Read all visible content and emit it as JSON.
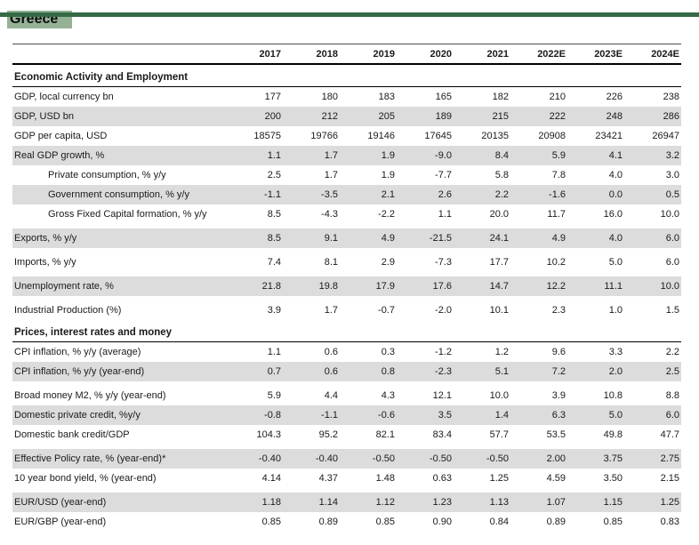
{
  "page": {
    "title": "Greece",
    "accent_bar_color": "#356a46",
    "title_highlight_color": "#95b295",
    "row_shade_color": "#dcdcdc"
  },
  "table": {
    "columns": [
      "2017",
      "2018",
      "2019",
      "2020",
      "2021",
      "2022E",
      "2023E",
      "2024E"
    ],
    "sections": [
      {
        "title": "Economic Activity and Employment",
        "rows": [
          {
            "label": "GDP, local currency bn",
            "indent": false,
            "shaded": false,
            "gap": false,
            "values": [
              "177",
              "180",
              "183",
              "165",
              "182",
              "210",
              "226",
              "238"
            ]
          },
          {
            "label": "GDP, USD bn",
            "indent": false,
            "shaded": true,
            "gap": false,
            "values": [
              "200",
              "212",
              "205",
              "189",
              "215",
              "222",
              "248",
              "286"
            ]
          },
          {
            "label": "GDP per capita, USD",
            "indent": false,
            "shaded": false,
            "gap": false,
            "values": [
              "18575",
              "19766",
              "19146",
              "17645",
              "20135",
              "20908",
              "23421",
              "26947"
            ]
          },
          {
            "label": "Real GDP growth, %",
            "indent": false,
            "shaded": true,
            "gap": false,
            "values": [
              "1.1",
              "1.7",
              "1.9",
              "-9.0",
              "8.4",
              "5.9",
              "4.1",
              "3.2"
            ]
          },
          {
            "label": "Private consumption, % y/y",
            "indent": true,
            "shaded": false,
            "gap": false,
            "values": [
              "2.5",
              "1.7",
              "1.9",
              "-7.7",
              "5.8",
              "7.8",
              "4.0",
              "3.0"
            ]
          },
          {
            "label": "Government consumption, % y/y",
            "indent": true,
            "shaded": true,
            "gap": false,
            "values": [
              "-1.1",
              "-3.5",
              "2.1",
              "2.6",
              "2.2",
              "-1.6",
              "0.0",
              "0.5"
            ]
          },
          {
            "label": "Gross Fixed Capital formation, % y/y",
            "indent": true,
            "shaded": false,
            "gap": false,
            "values": [
              "8.5",
              "-4.3",
              "-2.2",
              "1.1",
              "20.0",
              "11.7",
              "16.0",
              "10.0"
            ]
          },
          {
            "label": "Exports, % y/y",
            "indent": false,
            "shaded": true,
            "gap": true,
            "values": [
              "8.5",
              "9.1",
              "4.9",
              "-21.5",
              "24.1",
              "4.9",
              "4.0",
              "6.0"
            ]
          },
          {
            "label": "Imports, % y/y",
            "indent": false,
            "shaded": false,
            "gap": true,
            "values": [
              "7.4",
              "8.1",
              "2.9",
              "-7.3",
              "17.7",
              "10.2",
              "5.0",
              "6.0"
            ]
          },
          {
            "label": "Unemployment rate, %",
            "indent": false,
            "shaded": true,
            "gap": true,
            "values": [
              "21.8",
              "19.8",
              "17.9",
              "17.6",
              "14.7",
              "12.2",
              "11.1",
              "10.0"
            ]
          },
          {
            "label": "Industrial Production (%)",
            "indent": false,
            "shaded": false,
            "gap": true,
            "values": [
              "3.9",
              "1.7",
              "-0.7",
              "-2.0",
              "10.1",
              "2.3",
              "1.0",
              "1.5"
            ]
          }
        ]
      },
      {
        "title": "Prices, interest rates and money",
        "rows": [
          {
            "label": "CPI inflation, % y/y (average)",
            "indent": false,
            "shaded": false,
            "gap": false,
            "values": [
              "1.1",
              "0.6",
              "0.3",
              "-1.2",
              "1.2",
              "9.6",
              "3.3",
              "2.2"
            ]
          },
          {
            "label": "CPI inflation, % y/y (year-end)",
            "indent": false,
            "shaded": true,
            "gap": false,
            "values": [
              "0.7",
              "0.6",
              "0.8",
              "-2.3",
              "5.1",
              "7.2",
              "2.0",
              "2.5"
            ]
          },
          {
            "label": "Broad money M2, % y/y (year-end)",
            "indent": false,
            "shaded": false,
            "gap": true,
            "values": [
              "5.9",
              "4.4",
              "4.3",
              "12.1",
              "10.0",
              "3.9",
              "10.8",
              "8.8"
            ]
          },
          {
            "label": "Domestic private credit, %y/y",
            "indent": false,
            "shaded": true,
            "gap": false,
            "values": [
              "-0.8",
              "-1.1",
              "-0.6",
              "3.5",
              "1.4",
              "6.3",
              "5.0",
              "6.0"
            ]
          },
          {
            "label": "Domestic bank credit/GDP",
            "indent": false,
            "shaded": false,
            "gap": false,
            "values": [
              "104.3",
              "95.2",
              "82.1",
              "83.4",
              "57.7",
              "53.5",
              "49.8",
              "47.7"
            ]
          },
          {
            "label": "Effective Policy rate, % (year-end)*",
            "indent": false,
            "shaded": true,
            "gap": true,
            "values": [
              "-0.40",
              "-0.40",
              "-0.50",
              "-0.50",
              "-0.50",
              "2.00",
              "3.75",
              "2.75"
            ]
          },
          {
            "label": "10 year bond yield, % (year-end)",
            "indent": false,
            "shaded": false,
            "gap": false,
            "values": [
              "4.14",
              "4.37",
              "1.48",
              "0.63",
              "1.25",
              "4.59",
              "3.50",
              "2.15"
            ]
          },
          {
            "label": "EUR/USD (year-end)",
            "indent": false,
            "shaded": true,
            "gap": true,
            "values": [
              "1.18",
              "1.14",
              "1.12",
              "1.23",
              "1.13",
              "1.07",
              "1.15",
              "1.25"
            ]
          },
          {
            "label": "EUR/GBP (year-end)",
            "indent": false,
            "shaded": false,
            "gap": false,
            "values": [
              "0.85",
              "0.89",
              "0.85",
              "0.90",
              "0.84",
              "0.89",
              "0.85",
              "0.83"
            ]
          }
        ]
      }
    ]
  }
}
